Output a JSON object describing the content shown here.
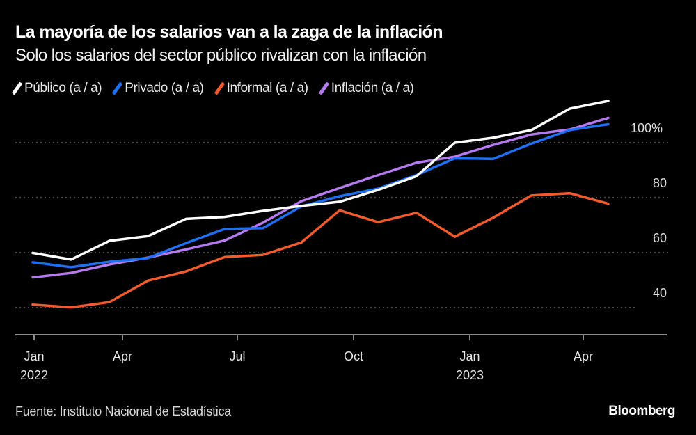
{
  "title": "La mayoría de los salarios van a la zaga de la inflación",
  "subtitle": "Solo los salarios del sector público rivalizan con la inflación",
  "source": "Fuente: Instituto Nacional de Estadística",
  "logo": "Bloomberg",
  "chart_data": {
    "type": "line",
    "title": "La mayoría de los salarios van a la zaga de la inflación",
    "subtitle": "Solo los salarios del sector público rivalizan con la inflación",
    "x": [
      "2022-01",
      "2022-02",
      "2022-03",
      "2022-04",
      "2022-05",
      "2022-06",
      "2022-07",
      "2022-08",
      "2022-09",
      "2022-10",
      "2022-11",
      "2022-12",
      "2023-01",
      "2023-02",
      "2023-03",
      "2023-04"
    ],
    "x_ticks": [
      {
        "label": "Jan",
        "sub": "2022"
      },
      {
        "label": "Apr",
        "sub": ""
      },
      {
        "label": "Jul",
        "sub": ""
      },
      {
        "label": "Oct",
        "sub": ""
      },
      {
        "label": "Jan",
        "sub": "2023"
      },
      {
        "label": "Apr",
        "sub": ""
      }
    ],
    "y_ticks": [
      {
        "value": 100,
        "label": "100%"
      },
      {
        "value": 80,
        "label": "80"
      },
      {
        "value": 60,
        "label": "60"
      },
      {
        "value": 40,
        "label": "40"
      }
    ],
    "ylim": [
      30,
      120
    ],
    "grid": true,
    "y_axis_side": "right",
    "legend_position": "top",
    "series": [
      {
        "name": "Público (a / a)",
        "color": "#ffffff",
        "values": [
          59.9,
          57.5,
          64.3,
          66,
          72.3,
          73,
          75.2,
          77,
          78.5,
          82.8,
          87.8,
          100,
          101.8,
          104.6,
          112.4,
          115.2
        ]
      },
      {
        "name": "Privado (a / a)",
        "color": "#1f6ff2",
        "values": [
          56.5,
          54.7,
          56.7,
          58,
          63.5,
          68.6,
          68.9,
          76.8,
          80.5,
          83.3,
          88.2,
          94.3,
          94.1,
          99.7,
          104.6,
          106.7
        ]
      },
      {
        "name": "Informal (a / a)",
        "color": "#f05a2c",
        "values": [
          41.1,
          40.1,
          42,
          49.8,
          53.2,
          58.4,
          59.2,
          63.7,
          75.4,
          71.1,
          74.5,
          65.8,
          72.7,
          80.8,
          81.6,
          77.8
        ]
      },
      {
        "name": "Inflación (a / a)",
        "color": "#b57af0",
        "values": [
          51,
          52.6,
          55.7,
          58.2,
          61.2,
          64.4,
          70.9,
          78.7,
          83.5,
          88.2,
          92.7,
          94.9,
          99.2,
          103,
          104.8,
          109
        ]
      }
    ]
  }
}
